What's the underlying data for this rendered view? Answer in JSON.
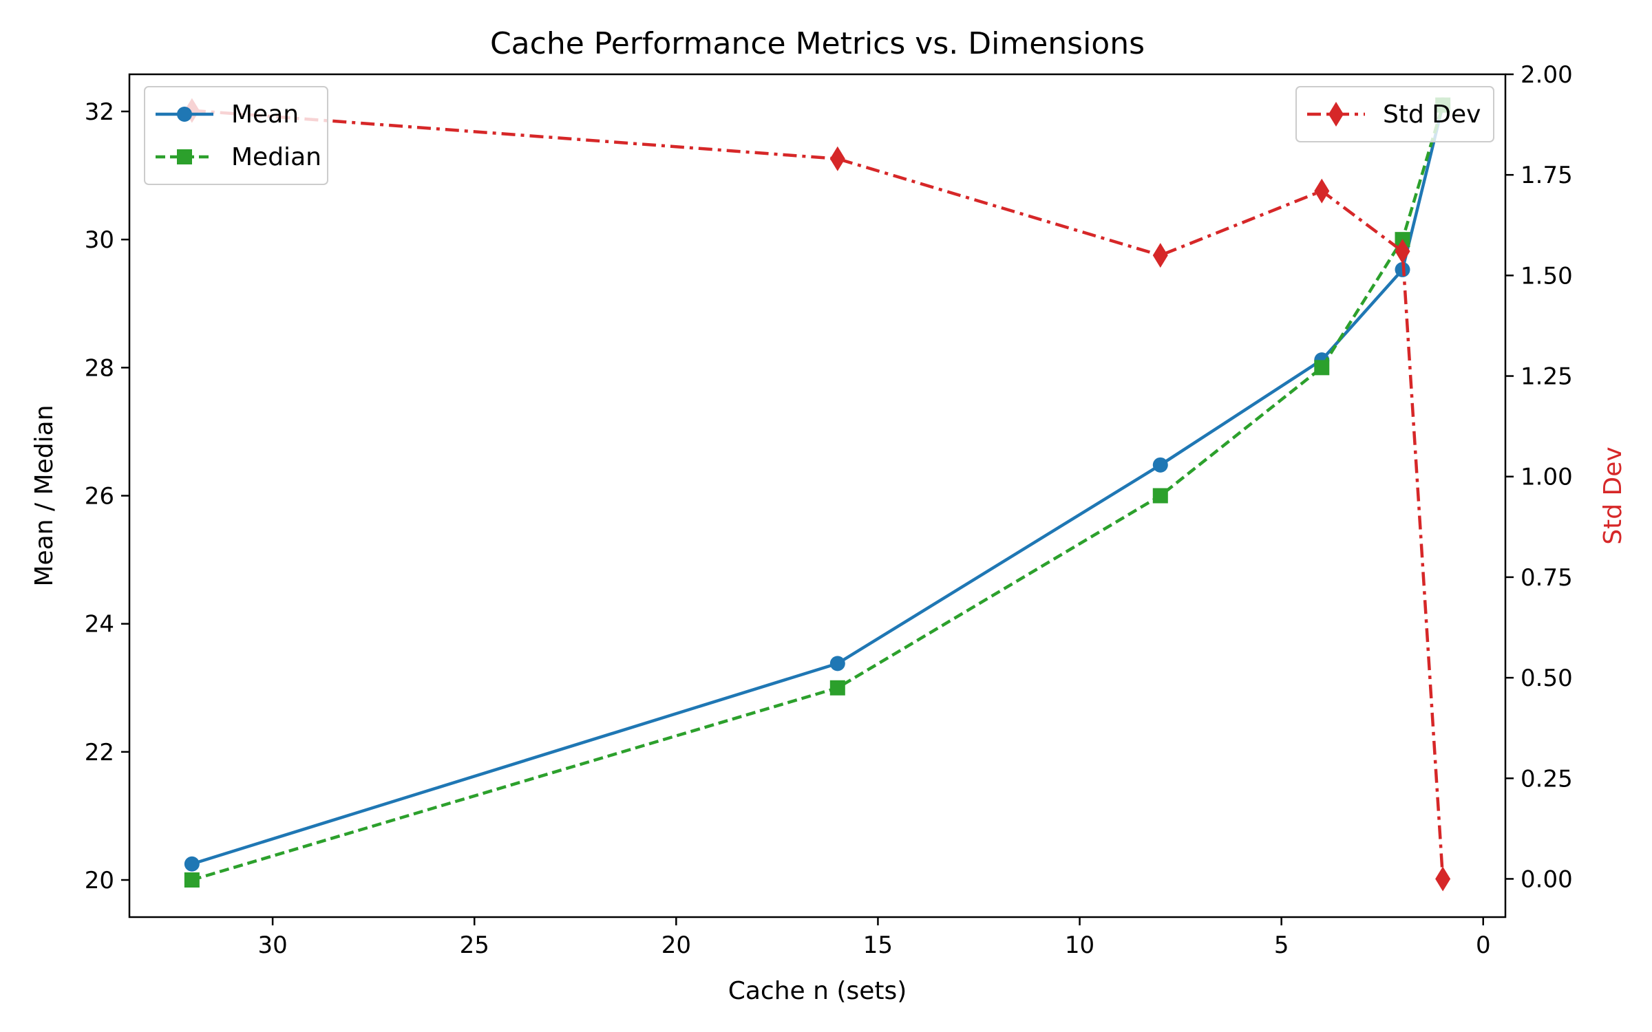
{
  "chart_data": {
    "type": "line",
    "title": "Cache Performance Metrics vs. Dimensions",
    "xlabel": "Cache n (sets)",
    "ylabel": "Mean / Median",
    "y2label": "Std Dev",
    "x_inverted": true,
    "xlim": [
      33.55,
      -0.55
    ],
    "ylim": [
      19.42,
      32.58
    ],
    "y2lim": [
      -0.095,
      2.0
    ],
    "x_ticks": [
      30,
      25,
      20,
      15,
      10,
      5,
      0
    ],
    "y_ticks": [
      20,
      22,
      24,
      26,
      28,
      30,
      32
    ],
    "y2_ticks": [
      0.0,
      0.25,
      0.5,
      0.75,
      1.0,
      1.25,
      1.5,
      1.75,
      2.0
    ],
    "y2_tick_labels": [
      "0.00",
      "0.25",
      "0.50",
      "0.75",
      "1.00",
      "1.25",
      "1.50",
      "1.75",
      "2.00"
    ],
    "x": [
      32,
      16,
      8,
      4,
      2,
      1
    ],
    "series": [
      {
        "name": "Mean",
        "axis": "left",
        "color": "#1f77b4",
        "marker": "circle",
        "linestyle": "solid",
        "values": [
          20.25,
          23.38,
          26.48,
          28.12,
          29.53,
          32.1
        ]
      },
      {
        "name": "Median",
        "axis": "left",
        "color": "#2ca02c",
        "marker": "square",
        "linestyle": "dashed",
        "values": [
          20.0,
          23.0,
          26.0,
          28.0,
          30.0,
          32.1
        ]
      },
      {
        "name": "Std Dev",
        "axis": "right",
        "color": "#d62728",
        "marker": "diamond",
        "linestyle": "dashdot",
        "values": [
          1.91,
          1.79,
          1.55,
          1.71,
          1.56,
          0.0
        ]
      }
    ],
    "legend_left": {
      "placement": "upper-left",
      "entries": [
        "Mean",
        "Median"
      ]
    },
    "legend_right": {
      "placement": "upper-right",
      "entries": [
        "Std Dev"
      ]
    },
    "grid": false
  }
}
